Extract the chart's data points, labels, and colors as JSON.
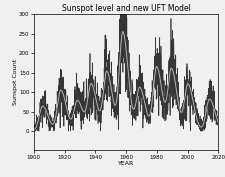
{
  "title": "Sunspot level and new UFT Model",
  "xlabel": "YEAR",
  "ylabel": "Sunspot Count",
  "xlim": [
    1900,
    2020
  ],
  "ylim": [
    -50,
    300
  ],
  "yticks": [
    0,
    50,
    100,
    150,
    200,
    250,
    300
  ],
  "xticks": [
    1900,
    1920,
    1940,
    1960,
    1980,
    2000,
    2020
  ],
  "observed_color": "#222222",
  "model_color": "#bbbbbb",
  "linewidth_obs": 0.5,
  "linewidth_model": 0.7,
  "title_fontsize": 5.5,
  "label_fontsize": 4.5,
  "tick_fontsize": 4.0,
  "figsize": [
    2.25,
    1.77
  ],
  "dpi": 100,
  "bg_color": "#f0f0f0"
}
